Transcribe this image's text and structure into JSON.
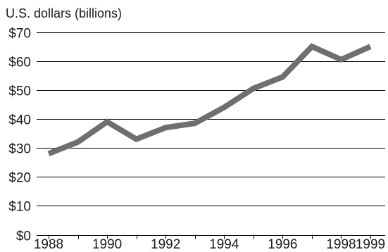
{
  "chart_data": {
    "type": "line",
    "title": "",
    "xlabel": "",
    "ylabel": "U.S. dollars (billions)",
    "x": [
      1988,
      1989,
      1990,
      1991,
      1992,
      1993,
      1994,
      1995,
      1996,
      1997,
      1998,
      1999
    ],
    "series": [
      {
        "values": [
          28,
          32,
          39,
          33,
          37,
          38.5,
          44,
          50.5,
          54.5,
          65,
          60.5,
          65
        ]
      }
    ],
    "x_ticks": [
      1988,
      1990,
      1992,
      1994,
      1996,
      1998,
      1999
    ],
    "x_tick_labels": [
      "1988",
      "1990",
      "1992",
      "1994",
      "1996",
      "1998",
      "1999"
    ],
    "y_ticks": [
      0,
      10,
      20,
      30,
      40,
      50,
      60,
      70
    ],
    "y_tick_labels": [
      "$0",
      "$10",
      "$20",
      "$30",
      "$40",
      "$50",
      "$60",
      "$70"
    ],
    "xlim": [
      1988,
      1999
    ],
    "ylim": [
      0,
      70
    ],
    "grid": "horizontal",
    "colors": {
      "line": "#6f6f6f",
      "grid": "#000000",
      "text": "#1a1a1a"
    }
  }
}
